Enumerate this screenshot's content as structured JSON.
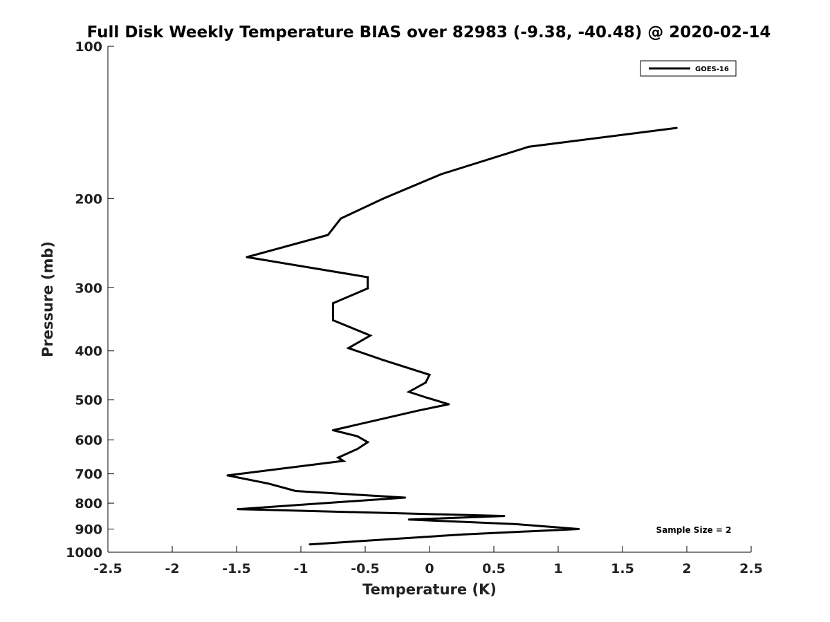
{
  "chart_data": {
    "type": "line",
    "title": "Full Disk Weekly Temperature BIAS over 82983 (-9.38, -40.48) @ 2020-02-14",
    "xlabel": "Temperature (K)",
    "ylabel": "Pressure (mb)",
    "xlim": [
      -2.5,
      2.5
    ],
    "ylim": [
      100,
      1000
    ],
    "y_scale": "log",
    "y_reversed": true,
    "x_ticks": [
      -2.5,
      -2,
      -1.5,
      -1,
      -0.5,
      0,
      0.5,
      1,
      1.5,
      2,
      2.5
    ],
    "x_tick_labels": [
      "-2.5",
      "-2",
      "-1.5",
      "-1",
      "-0.5",
      "0",
      "0.5",
      "1",
      "1.5",
      "2",
      "2.5"
    ],
    "y_ticks": [
      100,
      200,
      300,
      400,
      500,
      600,
      700,
      800,
      900,
      1000
    ],
    "y_tick_labels": [
      "100",
      "200",
      "300",
      "400",
      "500",
      "600",
      "700",
      "800",
      "900",
      "1000"
    ],
    "grid": false,
    "legend_position": "top-right",
    "series": [
      {
        "name": "GOES-16",
        "color": "#000000",
        "x": [
          1.92,
          0.77,
          0.09,
          -0.36,
          -0.69,
          -0.79,
          -1.42,
          -0.48,
          -0.48,
          -0.75,
          -0.75,
          -0.46,
          -0.63,
          -0.36,
          0,
          -0.03,
          -0.16,
          -0.02,
          0.15,
          -0.09,
          -0.75,
          -0.56,
          -0.48,
          -0.56,
          -0.71,
          -0.67,
          -1.57,
          -1.25,
          -1.04,
          -0.19,
          -1.49,
          0.58,
          -0.16,
          0.67,
          1.16,
          0.27,
          -0.93
        ],
        "y": [
          145,
          158,
          179,
          200,
          219,
          236,
          261,
          286,
          301,
          322,
          348,
          373,
          395,
          417,
          446,
          462,
          482,
          495,
          510,
          525,
          574,
          590,
          606,
          625,
          650,
          660,
          705,
          732,
          757,
          780,
          822,
          848,
          862,
          880,
          900,
          922,
          965
        ]
      }
    ],
    "annotations": [
      "Sample Size = 2"
    ]
  },
  "colors": {
    "line": "#000000",
    "axis": "#000000",
    "text": "#222222",
    "background": "#ffffff"
  }
}
